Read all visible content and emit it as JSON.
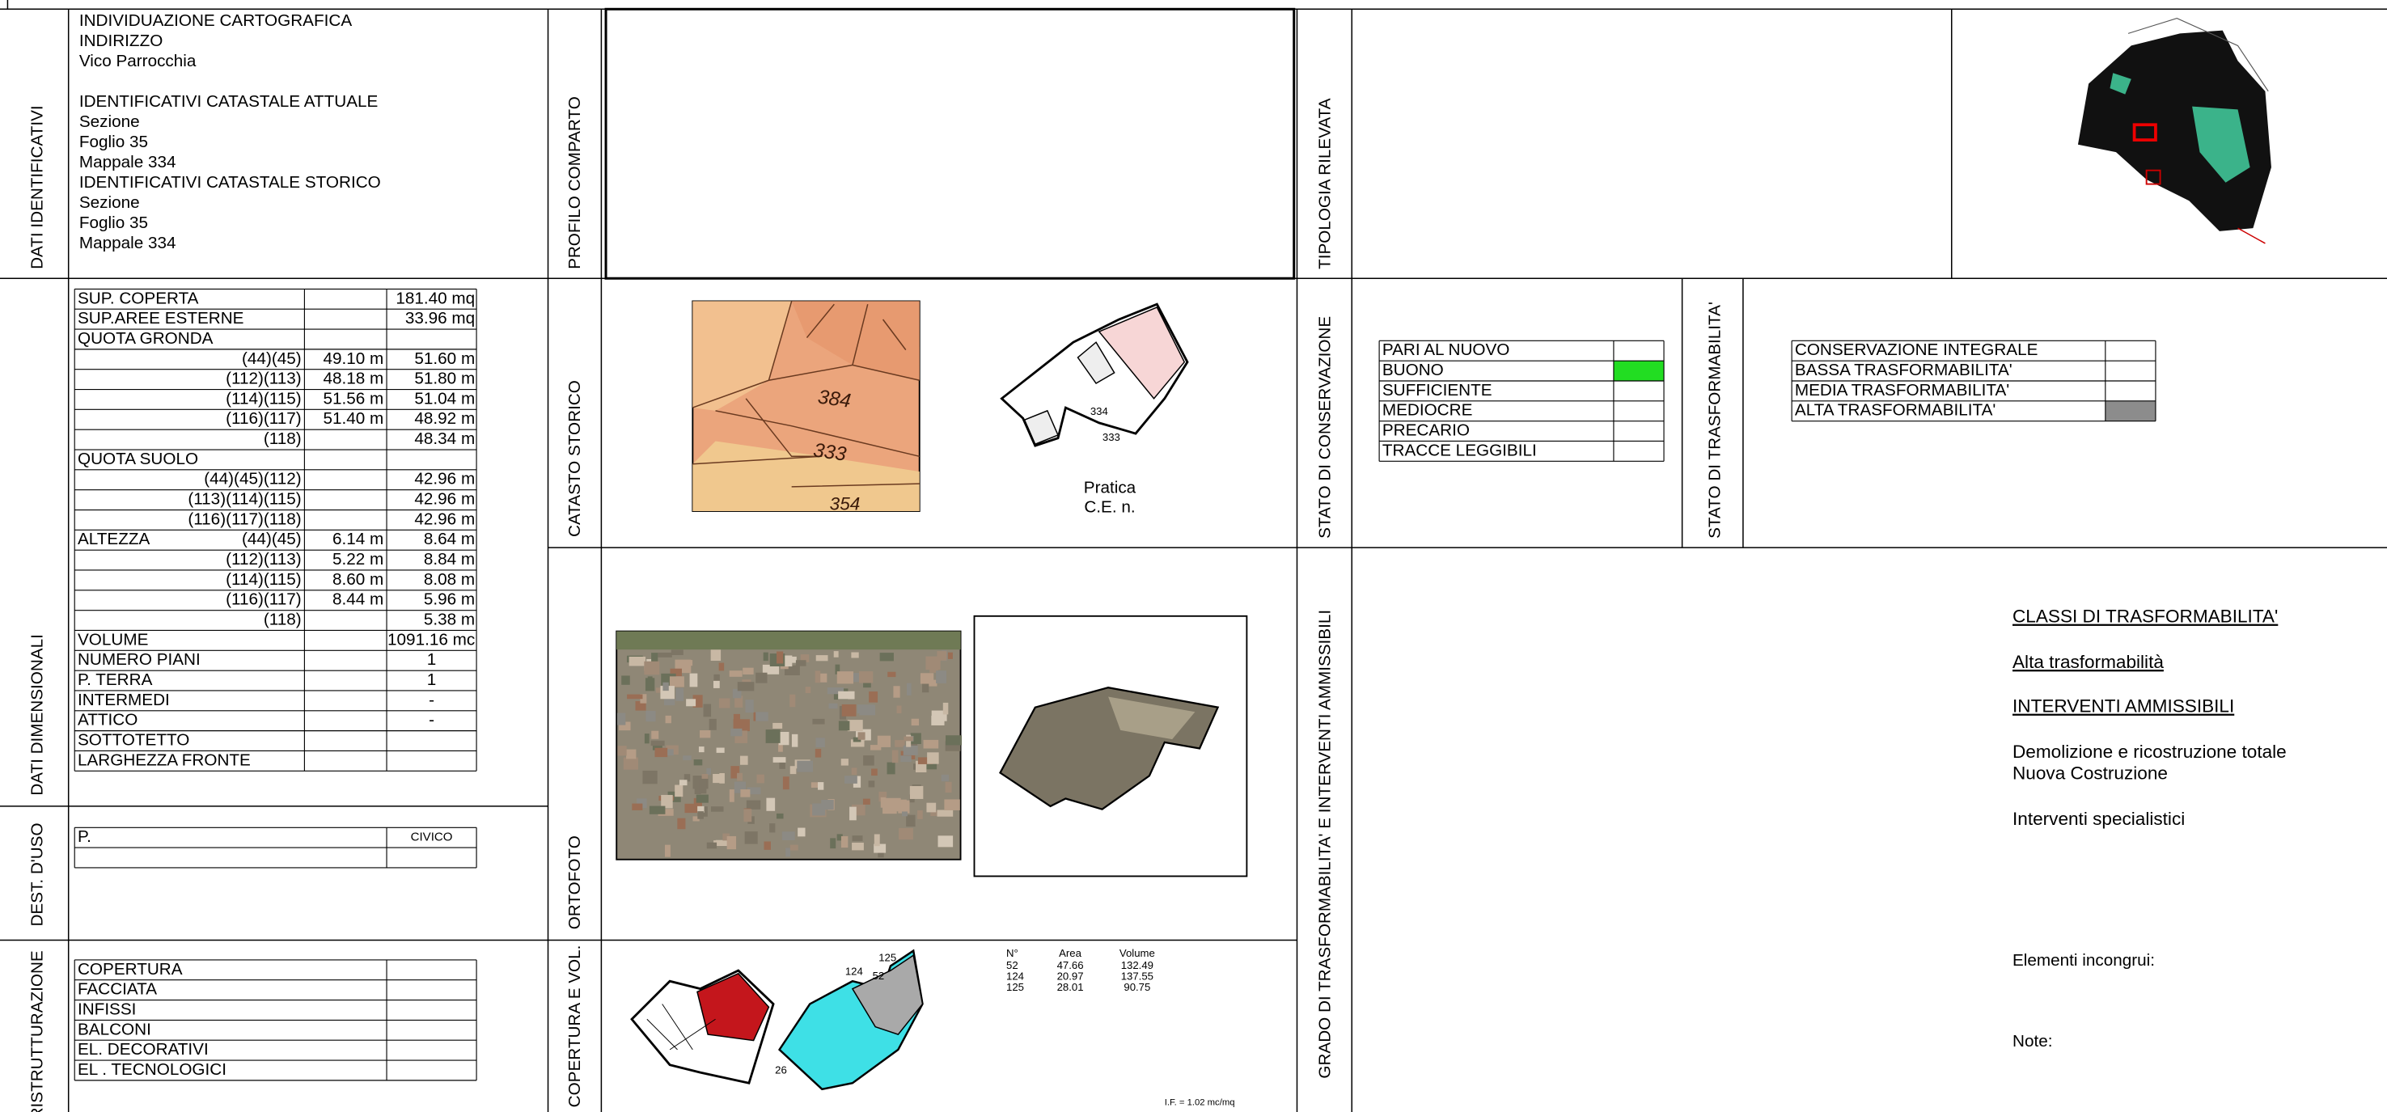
{
  "dati_identificativi": {
    "label": "DATI IDENTIFICATIVI",
    "lines": [
      "INDIVIDUAZIONE CARTOGRAFICA",
      "INDIRIZZO",
      " Vico Parrocchia",
      "IDENTIFICATIVI CATASTALE ATTUALE",
      "Sezione",
      "Foglio 35",
      "Mappale 334",
      "IDENTIFICATIVI CATASTALE STORICO",
      "Sezione",
      "Foglio 35",
      "Mappale 334"
    ]
  },
  "profilo_comparto": {
    "label": "PROFILO COMPARTO"
  },
  "tipologia_rilevata": {
    "label": "TIPOLOGIA RILEVATA"
  },
  "dati_dimensionali": {
    "label": "DATI DIMENSIONALI",
    "rows": [
      {
        "label": "SUP. COPERTA",
        "c3": "181.40 mq"
      },
      {
        "label": "SUP.AREE ESTERNE",
        "c3": "33.96 mq"
      },
      {
        "label": "QUOTA GRONDA"
      },
      {
        "sub": "(44)(45)",
        "c2": "49.10 m",
        "c3": "51.60 m"
      },
      {
        "sub": "(112)(113)",
        "c2": "48.18 m",
        "c3": "51.80 m"
      },
      {
        "sub": "(114)(115)",
        "c2": "51.56 m",
        "c3": "51.04 m"
      },
      {
        "sub": "(116)(117)",
        "c2": "51.40 m",
        "c3": "48.92 m"
      },
      {
        "sub": "(118)",
        "c3": "48.34 m"
      },
      {
        "label": "QUOTA SUOLO"
      },
      {
        "sub": "(44)(45)(112)",
        "c3": "42.96 m"
      },
      {
        "sub": "(113)(114)(115)",
        "c3": "42.96 m"
      },
      {
        "sub": "(116)(117)(118)",
        "c3": "42.96 m"
      },
      {
        "label": "ALTEZZA",
        "sub": "(44)(45)",
        "c2": "6.14 m",
        "c3": "8.64 m"
      },
      {
        "sub": "(112)(113)",
        "c2": "5.22 m",
        "c3": "8.84 m"
      },
      {
        "sub": "(114)(115)",
        "c2": "8.60 m",
        "c3": "8.08 m"
      },
      {
        "sub": "(116)(117)",
        "c2": "8.44 m",
        "c3": "5.96 m"
      },
      {
        "sub": "(118)",
        "c3": "5.38 m"
      },
      {
        "label": "VOLUME",
        "c3": "1091.16 mc"
      },
      {
        "label": "NUMERO PIANI",
        "c3": "1"
      },
      {
        "label": "P. TERRA",
        "c3": "1"
      },
      {
        "label": "INTERMEDI",
        "c3": "-"
      },
      {
        "label": "ATTICO",
        "c3": "-"
      },
      {
        "label": "SOTTOTETTO"
      },
      {
        "label": "LARGHEZZA FRONTE"
      }
    ]
  },
  "catasto_storico": {
    "label": "CATASTO STORICO",
    "map_labels": [
      "384",
      "333",
      "354"
    ],
    "sketch_labels": [
      "334",
      "333"
    ],
    "pratica": [
      "Pratica",
      "C.E. n."
    ]
  },
  "stato_conservazione": {
    "label": "STATO DI CONSERVAZIONE",
    "selected_fill": "#22dd22",
    "items": [
      {
        "label": "PARI AL NUOVO"
      },
      {
        "label": "BUONO",
        "selected": true
      },
      {
        "label": "SUFFICIENTE"
      },
      {
        "label": "MEDIOCRE"
      },
      {
        "label": "PRECARIO"
      },
      {
        "label": "TRACCE LEGGIBILI"
      }
    ]
  },
  "stato_trasformabilita": {
    "label": "STATO DI TRASFORMABILITA'",
    "selected_fill": "#8c8c8c",
    "items": [
      {
        "label": "CONSERVAZIONE INTEGRALE"
      },
      {
        "label": "BASSA TRASFORMABILITA'"
      },
      {
        "label": "MEDIA TRASFORMABILITA'"
      },
      {
        "label": "ALTA TRASFORMABILITA'",
        "selected": true
      }
    ]
  },
  "dest_uso": {
    "label": "DEST. D'USO",
    "rows": [
      {
        "label": "P.",
        "civico": "CIVICO"
      }
    ]
  },
  "ortofoto": {
    "label": "ORTOFOTO"
  },
  "grado": {
    "label": "GRADO DI TRASFORMABILITA' E INTERVENTI AMMISSIBILI",
    "classi_title": "CLASSI DI TRASFORMABILITA'",
    "classe": "Alta trasformabilità",
    "interventi_title": "INTERVENTI AMMISSIBILI",
    "interventi": [
      "Demolizione e ricostruzione totale",
      "Nuova Costruzione"
    ],
    "specialistici": "Interventi specialistici",
    "elementi_incongrui": "Elementi incongrui:",
    "note": "Note:"
  },
  "ristrutturazione": {
    "label": "RISTRUTTURAZIONE",
    "items": [
      "COPERTURA",
      "FACCIATA",
      "INFISSI",
      "BALCONI",
      "EL. DECORATIVI",
      "EL . TECNOLOGICI"
    ]
  },
  "copertura_vol": {
    "label": "COPERTURA E VOL.",
    "columns": [
      "N°",
      "Area",
      "Volume"
    ],
    "rows": [
      [
        "52",
        "47.66",
        "132.49"
      ],
      [
        "124",
        "20.97",
        "137.55"
      ],
      [
        "125",
        "28.01",
        "90.75"
      ]
    ],
    "sketch_labels": [
      "124",
      "125",
      "52",
      "26"
    ],
    "indice": "I.F. = 1.02 mc/mq"
  }
}
